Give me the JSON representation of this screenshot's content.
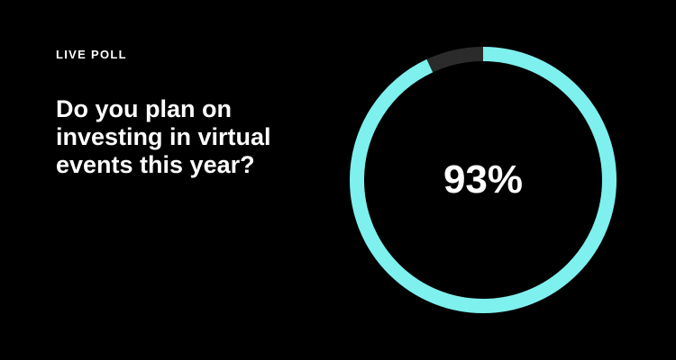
{
  "poll": {
    "label": "LIVE POLL",
    "question": "Do you plan on investing in virtual events this year?",
    "percent_label": "93%",
    "fraction": 0.93
  },
  "colors": {
    "background": "#000000",
    "text": "#ffffff",
    "progress": "#7ef0ee",
    "track": "#2b2b2b"
  }
}
